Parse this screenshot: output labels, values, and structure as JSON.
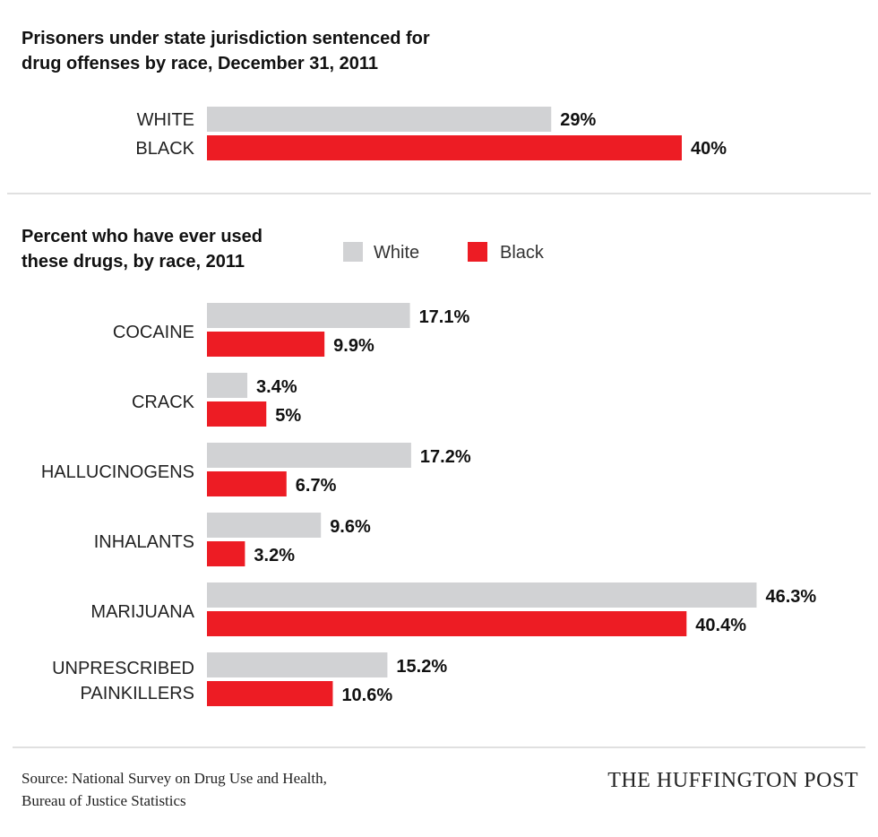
{
  "chart_data": [
    {
      "type": "bar",
      "orientation": "horizontal",
      "title": [
        "Prisoners under state jurisdiction sentenced for",
        "drug offenses by race, December 31, 2011"
      ],
      "categories": [
        "WHITE",
        "BLACK"
      ],
      "values": [
        29,
        40
      ],
      "data_labels": [
        "29%",
        "40%"
      ],
      "colors": [
        "#d1d2d4",
        "#ed1c24"
      ],
      "grid": false
    },
    {
      "type": "bar",
      "orientation": "horizontal",
      "title": [
        "Percent who have ever used",
        "these drugs, by race, 2011"
      ],
      "categories": [
        [
          "COCAINE"
        ],
        [
          "CRACK"
        ],
        [
          "HALLUCINOGENS"
        ],
        [
          "INHALANTS"
        ],
        [
          "MARIJUANA"
        ],
        [
          "UNPRESCRIBED",
          "PAINKILLERS"
        ]
      ],
      "series": [
        {
          "name": "White",
          "color": "#d1d2d4",
          "values": [
            17.1,
            3.4,
            17.2,
            9.6,
            46.3,
            15.2
          ],
          "data_labels": [
            "17.1%",
            "3.4%",
            "17.2%",
            "9.6%",
            "46.3%",
            "15.2%"
          ]
        },
        {
          "name": "Black",
          "color": "#ed1c24",
          "values": [
            9.9,
            5,
            6.7,
            3.2,
            40.4,
            10.6
          ],
          "data_labels": [
            "9.9%",
            "5%",
            "6.7%",
            "3.2%",
            "40.4%",
            "10.6%"
          ]
        }
      ],
      "legend": "top-right",
      "grid": false
    }
  ],
  "footer": {
    "source": [
      "Source: National Survey on Drug Use and Health,",
      "Bureau of Justice Statistics"
    ],
    "brand": "THE HUFFINGTON POST"
  }
}
